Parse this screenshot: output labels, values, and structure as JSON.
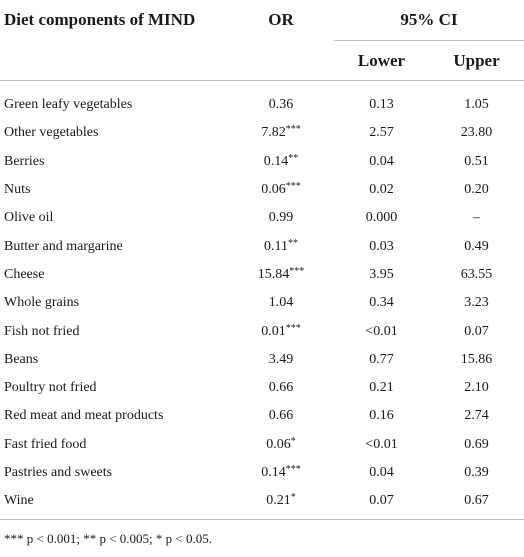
{
  "table": {
    "headers": {
      "component": "Diet components of MIND",
      "or": "OR",
      "ci": "95% CI",
      "lower": "Lower",
      "upper": "Upper"
    },
    "rows": [
      {
        "name": "Green leafy vegetables",
        "or": "0.36",
        "sig": "",
        "lower": "0.13",
        "upper": "1.05"
      },
      {
        "name": "Other vegetables",
        "or": "7.82",
        "sig": "***",
        "lower": "2.57",
        "upper": "23.80"
      },
      {
        "name": "Berries",
        "or": "0.14",
        "sig": "**",
        "lower": "0.04",
        "upper": "0.51"
      },
      {
        "name": "Nuts",
        "or": "0.06",
        "sig": "***",
        "lower": "0.02",
        "upper": "0.20"
      },
      {
        "name": "Olive oil",
        "or": "0.99",
        "sig": "",
        "lower": "0.000",
        "upper": "–"
      },
      {
        "name": "Butter and margarine",
        "or": "0.11",
        "sig": "**",
        "lower": "0.03",
        "upper": "0.49"
      },
      {
        "name": "Cheese",
        "or": "15.84",
        "sig": "***",
        "lower": "3.95",
        "upper": "63.55"
      },
      {
        "name": "Whole grains",
        "or": "1.04",
        "sig": "",
        "lower": "0.34",
        "upper": "3.23"
      },
      {
        "name": "Fish not fried",
        "or": "0.01",
        "sig": "***",
        "lower": "<0.01",
        "upper": "0.07"
      },
      {
        "name": "Beans",
        "or": "3.49",
        "sig": "",
        "lower": "0.77",
        "upper": "15.86"
      },
      {
        "name": "Poultry not fried",
        "or": "0.66",
        "sig": "",
        "lower": "0.21",
        "upper": "2.10"
      },
      {
        "name": "Red meat and meat products",
        "or": "0.66",
        "sig": "",
        "lower": "0.16",
        "upper": "2.74"
      },
      {
        "name": "Fast fried food",
        "or": "0.06",
        "sig": "*",
        "lower": "<0.01",
        "upper": "0.69"
      },
      {
        "name": "Pastries and sweets",
        "or": "0.14",
        "sig": "***",
        "lower": "0.04",
        "upper": "0.39"
      },
      {
        "name": "Wine",
        "or": "0.21",
        "sig": "*",
        "lower": "0.07",
        "upper": "0.67"
      }
    ],
    "footnote": "*** p < 0.001; ** p < 0.005; * p < 0.05."
  }
}
